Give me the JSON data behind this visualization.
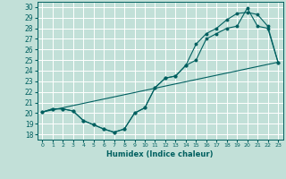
{
  "xlabel": "Humidex (Indice chaleur)",
  "xlim": [
    -0.5,
    23.5
  ],
  "ylim": [
    17.5,
    30.5
  ],
  "xticks": [
    0,
    1,
    2,
    3,
    4,
    5,
    6,
    7,
    8,
    9,
    10,
    11,
    12,
    13,
    14,
    15,
    16,
    17,
    18,
    19,
    20,
    21,
    22,
    23
  ],
  "yticks": [
    18,
    19,
    20,
    21,
    22,
    23,
    24,
    25,
    26,
    27,
    28,
    29,
    30
  ],
  "bg_color": "#c2e0d8",
  "grid_color": "#ffffff",
  "line_color": "#006060",
  "line1_x": [
    0,
    1,
    2,
    3,
    4,
    5,
    6,
    7,
    8,
    9,
    10,
    11,
    12,
    13,
    14,
    15,
    16,
    17,
    18,
    19,
    20,
    21,
    22,
    23
  ],
  "line1_y": [
    20.1,
    20.4,
    20.4,
    20.2,
    19.3,
    18.9,
    18.5,
    18.2,
    18.5,
    20.0,
    20.5,
    22.4,
    23.3,
    23.5,
    24.5,
    25.0,
    27.0,
    27.5,
    28.0,
    28.2,
    29.9,
    28.2,
    28.0,
    24.8
  ],
  "line2_x": [
    0,
    1,
    2,
    3,
    4,
    5,
    6,
    7,
    8,
    9,
    10,
    11,
    12,
    13,
    14,
    15,
    16,
    17,
    18,
    19,
    20,
    21,
    22,
    23
  ],
  "line2_y": [
    20.1,
    20.4,
    20.4,
    20.2,
    19.3,
    18.9,
    18.5,
    18.2,
    18.5,
    20.0,
    20.5,
    22.4,
    23.3,
    23.5,
    24.5,
    26.5,
    27.5,
    28.0,
    28.8,
    29.4,
    29.5,
    29.3,
    28.2,
    24.8
  ],
  "line3_x": [
    0,
    23
  ],
  "line3_y": [
    20.1,
    24.8
  ],
  "marker_color": "#006060"
}
